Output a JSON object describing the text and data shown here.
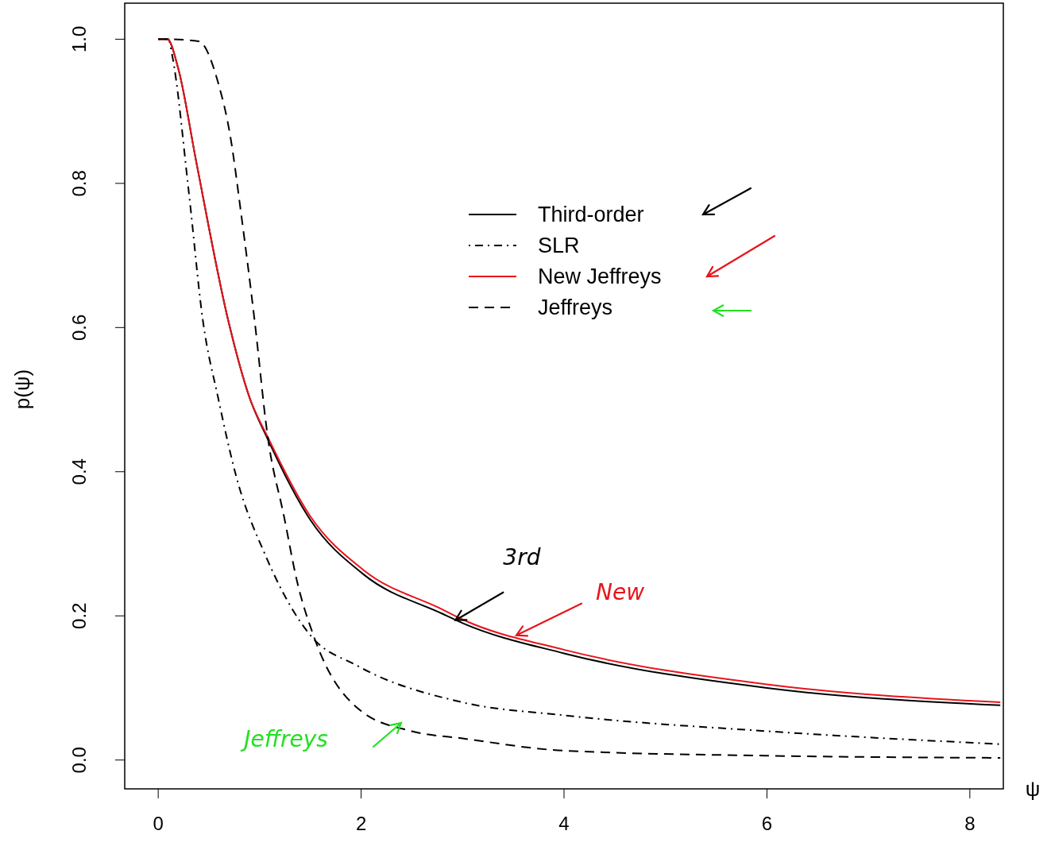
{
  "chart_data": {
    "type": "line",
    "xlabel": "ψ",
    "ylabel": "p(ψ)",
    "xlim": [
      -0.33,
      8.33
    ],
    "ylim": [
      -0.04,
      1.05
    ],
    "xticks": [
      0,
      2,
      4,
      6,
      8
    ],
    "yticks": [
      {
        "value": 0,
        "label": "0.0"
      },
      {
        "value": 0.2,
        "label": "0.2"
      },
      {
        "value": 0.4,
        "label": "0.4"
      },
      {
        "value": 0.6,
        "label": "0.6"
      },
      {
        "value": 0.8,
        "label": "0.8"
      },
      {
        "value": 1,
        "label": "1.0"
      }
    ],
    "grid": false,
    "legend": "top",
    "marker": "none",
    "series": [
      {
        "name": "Third-order",
        "color": "#000000",
        "line_style": "solid",
        "x": [
          0,
          0.09,
          0.2,
          0.375,
          0.69,
          0.9,
          1.08,
          1.5,
          2.02,
          2.8,
          3,
          4,
          6,
          8.3
        ],
        "values": [
          1,
          1,
          0.958,
          0.83,
          0.61,
          0.503,
          0.445,
          0.333,
          0.258,
          0.203,
          0.19,
          0.148,
          0.1,
          0.076
        ]
      },
      {
        "name": "SLR",
        "color": "#000000",
        "line_style": "dashdot",
        "x": [
          0,
          0.1,
          0.14,
          0.3,
          0.44,
          0.59,
          0.77,
          1.06,
          1.5,
          1.96,
          3,
          4,
          6,
          8.3
        ],
        "values": [
          1,
          1,
          0.976,
          0.79,
          0.61,
          0.503,
          0.393,
          0.283,
          0.173,
          0.131,
          0.08,
          0.062,
          0.04,
          0.022
        ]
      },
      {
        "name": "New Jeffreys",
        "color": "#e8141c",
        "line_style": "solid",
        "x": [
          0,
          0.09,
          0.2,
          0.375,
          0.69,
          0.9,
          1.08,
          1.5,
          2.02,
          2.8,
          3,
          4,
          6,
          8.3
        ],
        "values": [
          1,
          1,
          0.958,
          0.83,
          0.61,
          0.503,
          0.448,
          0.338,
          0.264,
          0.209,
          0.195,
          0.153,
          0.105,
          0.08
        ]
      },
      {
        "name": "Jeffreys",
        "color": "#000000",
        "line_style": "dashed",
        "x": [
          0,
          0.1,
          0.4,
          0.59,
          0.71,
          0.82,
          0.95,
          1.08,
          1.24,
          1.37,
          1.53,
          2,
          2.5,
          3,
          4,
          6,
          8.3
        ],
        "values": [
          1,
          1,
          0.997,
          0.94,
          0.866,
          0.755,
          0.61,
          0.448,
          0.338,
          0.247,
          0.173,
          0.068,
          0.04,
          0.03,
          0.013,
          0.006,
          0.003
        ]
      }
    ],
    "annotations": [
      {
        "text": "3rd",
        "x": 2.93,
        "y": 0.194
      },
      {
        "text": "New",
        "x": 3.53,
        "y": 0.173
      },
      "Jeffreys"
    ]
  }
}
